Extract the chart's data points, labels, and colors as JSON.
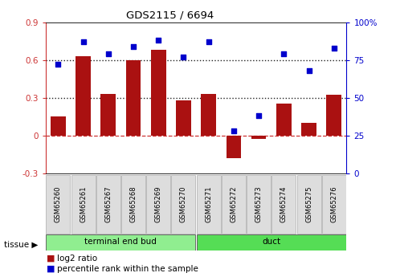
{
  "title": "GDS2115 / 6694",
  "samples": [
    "GSM65260",
    "GSM65261",
    "GSM65267",
    "GSM65268",
    "GSM65269",
    "GSM65270",
    "GSM65271",
    "GSM65272",
    "GSM65273",
    "GSM65274",
    "GSM65275",
    "GSM65276"
  ],
  "log2_ratio": [
    0.15,
    0.63,
    0.33,
    0.6,
    0.68,
    0.28,
    0.33,
    -0.18,
    -0.03,
    0.25,
    0.1,
    0.32
  ],
  "percentile_rank": [
    72,
    87,
    79,
    84,
    88,
    77,
    87,
    28,
    38,
    79,
    68,
    83
  ],
  "groups": [
    {
      "label": "terminal end bud",
      "start": 0,
      "end": 6,
      "color": "#90EE90"
    },
    {
      "label": "duct",
      "start": 6,
      "end": 12,
      "color": "#55DD55"
    }
  ],
  "bar_color": "#AA1111",
  "dot_color": "#0000CC",
  "left_ylim": [
    -0.3,
    0.9
  ],
  "left_yticks": [
    -0.3,
    0.0,
    0.3,
    0.6,
    0.9
  ],
  "right_ylim": [
    0,
    100
  ],
  "right_yticks": [
    0,
    25,
    50,
    75,
    100
  ],
  "tissue_label": "tissue",
  "legend_bar_label": "log2 ratio",
  "legend_dot_label": "percentile rank within the sample"
}
